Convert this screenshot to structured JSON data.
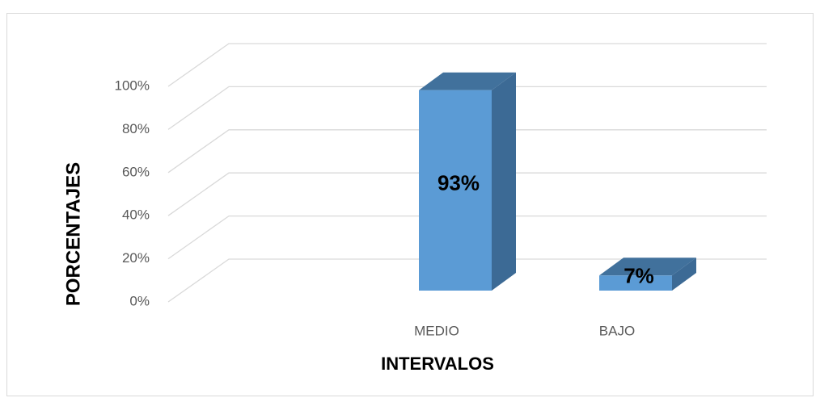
{
  "chart_data": {
    "type": "bar3d",
    "categories": [
      null,
      "MEDIO",
      "BAJO"
    ],
    "values": [
      null,
      93,
      7
    ],
    "value_labels": [
      null,
      "93%",
      "7%"
    ],
    "color": "#5b9bd5",
    "xlabel": "INTERVALOS",
    "ylabel": "PORCENTAJES",
    "ylim": [
      0,
      100
    ],
    "yticks": [
      {
        "value": 0,
        "label": "0%"
      },
      {
        "value": 20,
        "label": "20%"
      },
      {
        "value": 40,
        "label": "40%"
      },
      {
        "value": 60,
        "label": "60%"
      },
      {
        "value": 80,
        "label": "80%"
      },
      {
        "value": 100,
        "label": "100%"
      }
    ],
    "grid": true
  }
}
